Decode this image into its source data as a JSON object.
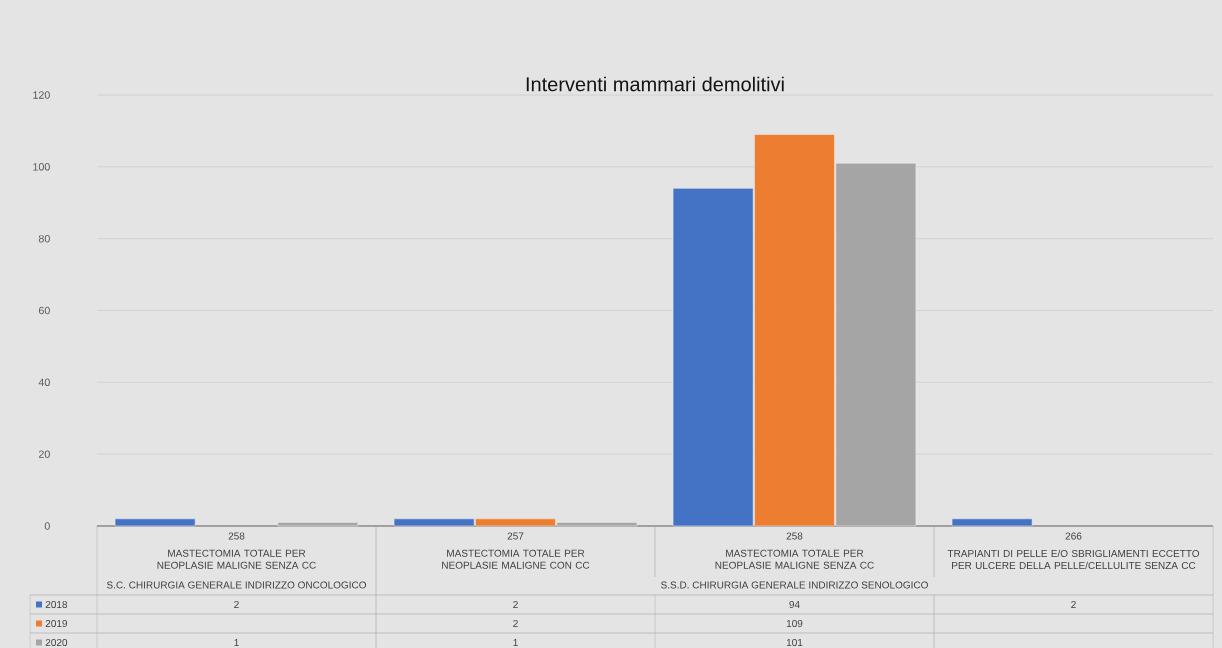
{
  "chart_data": {
    "type": "bar",
    "title": "Interventi mammari demolitivi",
    "categories": [
      "MASTECTOMIA TOTALE PER NEOPLASIE MALIGNE SENZA CC",
      "MASTECTOMIA TOTALE PER NEOPLASIE MALIGNE CON CC",
      "MASTECTOMIA TOTALE PER NEOPLASIE MALIGNE SENZA CC",
      "TRAPIANTI DI PELLE E/O SBRIGLIAMENTI ECCETTO PER ULCERE DELLA PELLE/CELLULITE SENZA CC"
    ],
    "annotations": [
      "258",
      "257",
      "258",
      "266",
      "S.C. CHIRURGIA GENERALE INDIRIZZO ONCOLOGICO",
      "S.S.D. CHIRURGIA GENERALE INDIRIZZO SENOLOGICO"
    ],
    "series": [
      {
        "name": "2018",
        "color": "#4472c4",
        "values": [
          2,
          2,
          94,
          2
        ]
      },
      {
        "name": "2019",
        "color": "#ed7d31",
        "values": [
          null,
          2,
          109,
          null
        ]
      },
      {
        "name": "2020",
        "color": "#a5a5a5",
        "values": [
          1,
          1,
          101,
          null
        ]
      }
    ],
    "ylim": [
      0,
      120
    ],
    "yticks": [
      0,
      20,
      40,
      60,
      80,
      100,
      120
    ],
    "grid": "y",
    "legend": "bottom",
    "data_labels": true
  }
}
